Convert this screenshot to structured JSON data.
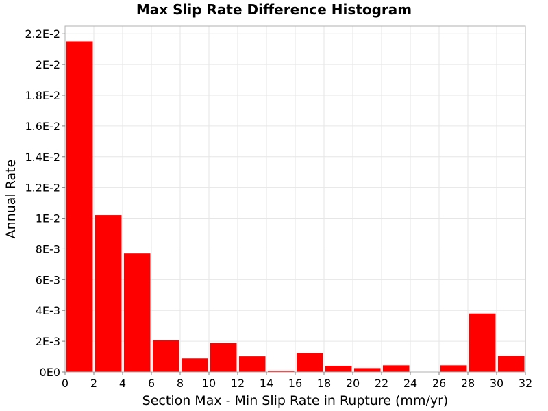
{
  "chart_data": {
    "type": "bar",
    "title": "Max Slip Rate Difference Histogram",
    "xlabel": "Section Max - Min Slip Rate in Rupture (mm/yr)",
    "ylabel": "Annual Rate",
    "xlim": [
      0,
      32
    ],
    "ylim": [
      0,
      0.0225
    ],
    "bin_width": 2,
    "x": [
      1,
      3,
      5,
      7,
      9,
      11,
      13,
      15,
      17,
      19,
      21,
      23,
      25,
      27,
      29,
      31
    ],
    "values": [
      0.0215,
      0.0102,
      0.0077,
      0.00205,
      0.00088,
      0.00188,
      0.00102,
      8e-05,
      0.00122,
      0.0004,
      0.00025,
      0.00043,
      0.0,
      0.00043,
      0.0038,
      0.00105
    ],
    "x_ticks": [
      0,
      2,
      4,
      6,
      8,
      10,
      12,
      14,
      16,
      18,
      20,
      22,
      24,
      26,
      28,
      30,
      32
    ],
    "y_ticks": [
      0,
      0.002,
      0.004,
      0.006,
      0.008,
      0.01,
      0.012,
      0.014,
      0.016,
      0.018,
      0.02,
      0.022
    ],
    "y_tick_labels": [
      "0E0",
      "2E-3",
      "4E-3",
      "6E-3",
      "8E-3",
      "1E-2",
      "1.2E-2",
      "1.4E-2",
      "1.6E-2",
      "1.8E-2",
      "2E-2",
      "2.2E-2"
    ],
    "grid": true,
    "legend": "none",
    "bar_color": "#ff0000",
    "grid_color": "#e6e6e6",
    "frame_color": "#b0b0b0"
  }
}
